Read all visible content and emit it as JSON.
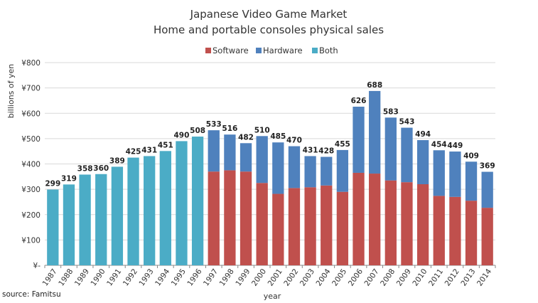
{
  "chart_data": {
    "type": "bar",
    "stacked": true,
    "title": "Japanese Video Game Market",
    "subtitle": "Home and portable consoles physical sales",
    "xlabel": "year",
    "ylabel": "billions of yen",
    "ylim": [
      0,
      800
    ],
    "yticks": [
      "¥-",
      "¥100",
      "¥200",
      "¥300",
      "¥400",
      "¥500",
      "¥600",
      "¥700",
      "¥800"
    ],
    "grid": true,
    "legend_position": "top",
    "source": "source: Famitsu",
    "categories": [
      "1987",
      "1988",
      "1989",
      "1990",
      "1991",
      "1992",
      "1993",
      "1994",
      "1995",
      "1996",
      "1997",
      "1998",
      "1999",
      "2000",
      "2001",
      "2002",
      "2003",
      "2004",
      "2005",
      "2006",
      "2007",
      "2008",
      "2009",
      "2010",
      "2011",
      "2012",
      "2013",
      "2014"
    ],
    "series": [
      {
        "name": "Software",
        "color": "#c0504d",
        "values": [
          null,
          null,
          null,
          null,
          null,
          null,
          null,
          null,
          null,
          null,
          370,
          375,
          370,
          325,
          282,
          305,
          308,
          315,
          290,
          365,
          362,
          335,
          328,
          320,
          274,
          270,
          255,
          227
        ]
      },
      {
        "name": "Hardware",
        "color": "#4f81bd",
        "values": [
          null,
          null,
          null,
          null,
          null,
          null,
          null,
          null,
          null,
          null,
          163,
          141,
          112,
          185,
          203,
          165,
          123,
          113,
          165,
          261,
          326,
          248,
          215,
          174,
          180,
          179,
          154,
          142
        ]
      },
      {
        "name": "Both",
        "color": "#4bacc6",
        "values": [
          299,
          319,
          358,
          360,
          389,
          425,
          431,
          451,
          490,
          508,
          null,
          null,
          null,
          null,
          null,
          null,
          null,
          null,
          null,
          null,
          null,
          null,
          null,
          null,
          null,
          null,
          null,
          null
        ]
      }
    ],
    "totals": [
      "299",
      "319",
      "358",
      "360",
      "389",
      "425",
      "431",
      "451",
      "490",
      "508",
      "533",
      "516",
      "482",
      "510",
      "485",
      "470",
      "431",
      "428",
      "455",
      "626",
      "688",
      "583",
      "543",
      "494",
      "454",
      "449",
      "409",
      "369"
    ]
  }
}
